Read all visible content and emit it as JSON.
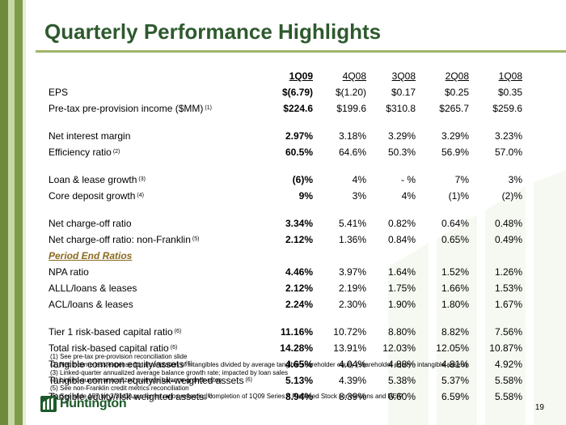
{
  "title": "Quarterly Performance Highlights",
  "columns": [
    "1Q09",
    "4Q08",
    "3Q08",
    "2Q08",
    "1Q08"
  ],
  "rows": [
    {
      "label": "EPS",
      "note": "",
      "values": [
        "$(6.79)",
        "$(1.20)",
        "$0.17",
        "$0.25",
        "$0.35"
      ]
    },
    {
      "label": "Pre-tax pre-provision income ($MM)",
      "note": "(1)",
      "values": [
        "$224.6",
        "$199.6",
        "$310.8",
        "$265.7",
        "$259.6"
      ]
    },
    {
      "label": "Net interest margin",
      "note": "",
      "values": [
        "2.97%",
        "3.18%",
        "3.29%",
        "3.29%",
        "3.23%"
      ]
    },
    {
      "label": "Efficiency ratio",
      "note": "(2)",
      "values": [
        "60.5%",
        "64.6%",
        "50.3%",
        "56.9%",
        "57.0%"
      ]
    },
    {
      "label": "Loan & lease growth",
      "note": "(3)",
      "values": [
        "(6)%",
        "4%",
        "- %",
        "7%",
        "3%"
      ]
    },
    {
      "label": "Core deposit growth",
      "note": "(4)",
      "values": [
        "9%",
        "3%",
        "4%",
        "(1)%",
        "(2)%"
      ]
    },
    {
      "label": "Net charge-off ratio",
      "note": "",
      "values": [
        "3.34%",
        "5.41%",
        "0.82%",
        "0.64%",
        "0.48%"
      ]
    },
    {
      "label": "Net charge-off ratio: non-Franklin",
      "note": "(5)",
      "values": [
        "2.12%",
        "1.36%",
        "0.84%",
        "0.65%",
        "0.49%"
      ]
    },
    {
      "label": "NPA  ratio",
      "note": "",
      "values": [
        "4.46%",
        "3.97%",
        "1.64%",
        "1.52%",
        "1.26%"
      ]
    },
    {
      "label": "ALLL/loans & leases",
      "note": "",
      "values": [
        "2.12%",
        "2.19%",
        "1.75%",
        "1.66%",
        "1.53%"
      ]
    },
    {
      "label": "ACL/loans & leases",
      "note": "",
      "values": [
        "2.24%",
        "2.30%",
        "1.90%",
        "1.80%",
        "1.67%"
      ]
    },
    {
      "label": "Tier 1 risk-based capital ratio",
      "note": "(6)",
      "values": [
        "11.16%",
        "10.72%",
        "8.80%",
        "8.82%",
        "7.56%"
      ]
    },
    {
      "label": "Total risk-based capital ratio",
      "note": "(6)",
      "values": [
        "14.28%",
        "13.91%",
        "12.03%",
        "12.05%",
        "10.87%"
      ]
    },
    {
      "label": "Tangible common equity/assets",
      "note": "(6)",
      "values": [
        "4.65%",
        "4.04%",
        "4.88%",
        "4.81%",
        "4.92%"
      ]
    },
    {
      "label": "Tangible common equity/risk-weighted assets",
      "note": "(6)",
      "values": [
        "5.13%",
        "4.39%",
        "5.38%",
        "5.37%",
        "5.58%"
      ]
    },
    {
      "label": "Tangible equity/risk-weighted assets",
      "note": "(6)",
      "values": [
        "8.94%",
        "8.39%",
        "6.60%",
        "6.59%",
        "5.58%"
      ]
    }
  ],
  "section_heading": "Period End Ratios",
  "footnotes": [
    "(1) See pre-tax pre-provision reconciliation slide",
    "(2) Net Income less expense for amortization of intangibles divided by average tangible shareholder equity (shareholder equity - intangible assets)",
    "(3) Linked-quarter annualized average balance growth rate; impacted by loan sales",
    "(4) Linked-quarter annualized average balance growth rates",
    "(5) See non-Franklin credit metrics reconciliation",
    "(6) See slide 157 for 3/31/09 pro forma ratios reflecting completion of 1Q09 Series A Preferred Stock conversions and DEIP"
  ],
  "logo_text": "Huntington",
  "page_number": "19",
  "colors": {
    "title": "#2e5a2e",
    "accent": "#9fb66b",
    "section": "#8b6a1f",
    "logo": "#1d5a2a"
  },
  "icons": {
    "logo": "huntington-logo-icon",
    "watermark": "huntington-watermark-icon"
  }
}
